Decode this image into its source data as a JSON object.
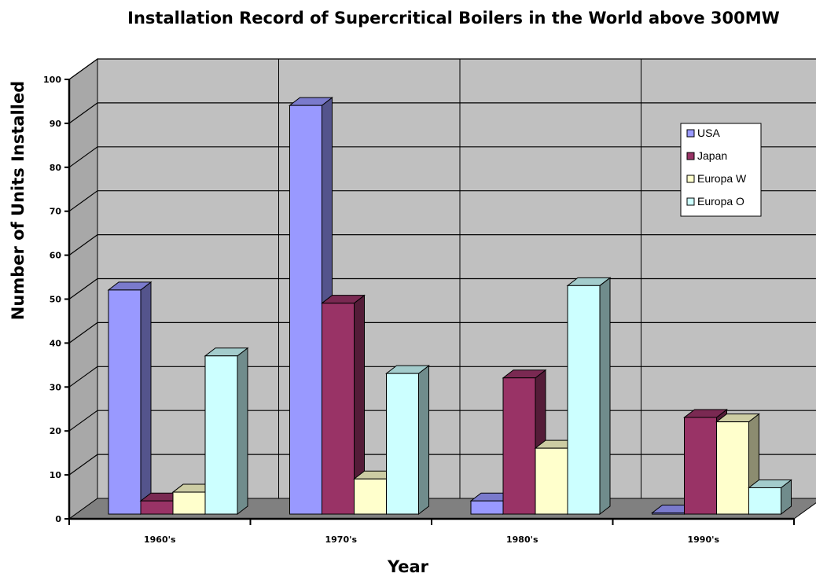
{
  "chart_data": {
    "type": "bar",
    "style": "3d-clustered-column",
    "title": "Installation Record of Supercritical Boilers in the World above 300MW",
    "xlabel": "Year",
    "ylabel": "Number of Units Installed",
    "ylim": [
      0,
      100
    ],
    "yticks": [
      0,
      10,
      20,
      30,
      40,
      50,
      60,
      70,
      80,
      90,
      100
    ],
    "categories": [
      "1960's",
      "1970's",
      "1980's",
      "1990's"
    ],
    "series": [
      {
        "name": "USA",
        "values": [
          51,
          93,
          3,
          0
        ],
        "color": "#9999ff"
      },
      {
        "name": "Japan",
        "values": [
          3,
          48,
          31,
          22
        ],
        "color": "#993366"
      },
      {
        "name": "Europa W",
        "values": [
          5,
          8,
          15,
          21
        ],
        "color": "#ffffcc"
      },
      {
        "name": "Europa O",
        "values": [
          36,
          32,
          52,
          6
        ],
        "color": "#ccffff"
      }
    ],
    "grid": true,
    "legend_position": "right",
    "wall_color": "#c0c0c0",
    "floor_color": "#808080"
  }
}
